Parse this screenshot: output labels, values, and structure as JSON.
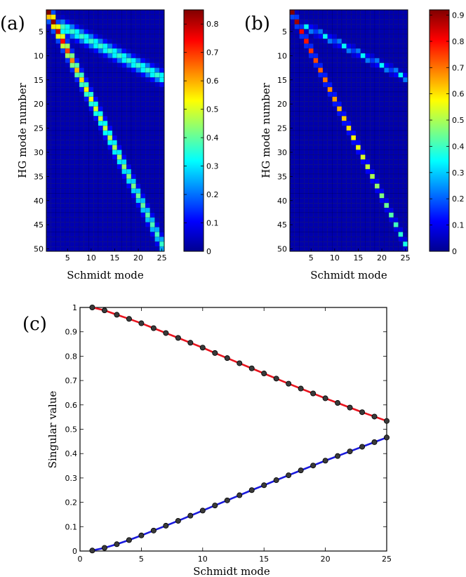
{
  "panels": [
    "(a)",
    "(b)",
    "(c)"
  ],
  "chart_data": [
    {
      "type": "heatmap",
      "panel": "(a)",
      "xlabel": "Schmidt mode",
      "ylabel": "HG mode number",
      "rows": 50,
      "cols": 25,
      "x_ticks": [
        5,
        10,
        15,
        20,
        25
      ],
      "y_ticks": [
        5,
        10,
        15,
        20,
        25,
        30,
        35,
        40,
        45,
        50
      ],
      "colorbar": {
        "min": 0,
        "max": 0.85,
        "ticks": [
          0,
          0.1,
          0.2,
          0.3,
          0.4,
          0.5,
          0.6,
          0.7,
          0.8
        ]
      },
      "colormap": "jet",
      "ridges": [
        {
          "description": "main diagonal ridge (HG ≈ 2k-1)",
          "values_along_k": [
            0.85,
            0.8,
            0.75,
            0.7,
            0.65,
            0.6,
            0.55,
            0.52,
            0.5,
            0.48,
            0.46,
            0.45,
            0.44,
            0.43,
            0.42,
            0.41,
            0.4,
            0.39,
            0.38,
            0.37,
            0.36,
            0.35,
            0.34,
            0.33,
            0.32
          ]
        },
        {
          "description": "secondary ridge (HG ≈ k/2 + 2)",
          "value": 0.32
        }
      ]
    },
    {
      "type": "heatmap",
      "panel": "(b)",
      "xlabel": "Schmidt mode",
      "ylabel": "HG mode number",
      "rows": 50,
      "cols": 25,
      "x_ticks": [
        5,
        10,
        15,
        20,
        25
      ],
      "y_ticks": [
        5,
        10,
        15,
        20,
        25,
        30,
        35,
        40,
        45,
        50
      ],
      "colorbar": {
        "min": 0,
        "max": 0.92,
        "ticks": [
          0,
          0.1,
          0.2,
          0.3,
          0.4,
          0.5,
          0.6,
          0.7,
          0.8,
          0.9
        ]
      },
      "colormap": "jet",
      "ridges": [
        {
          "description": "main diagonal ridge (HG ≈ 2k-1)",
          "values_along_k": [
            0.92,
            0.85,
            0.78,
            0.75,
            0.72,
            0.7,
            0.68,
            0.66,
            0.64,
            0.62,
            0.6,
            0.58,
            0.56,
            0.54,
            0.52,
            0.5,
            0.48,
            0.46,
            0.44,
            0.42,
            0.4,
            0.38,
            0.36,
            0.34,
            0.32
          ]
        },
        {
          "description": "secondary ridge (HG ≈ k/2 + 2)",
          "value": 0.3
        }
      ]
    },
    {
      "type": "line",
      "panel": "(c)",
      "xlabel": "Schmidt mode",
      "ylabel": "Singular value",
      "xlim": [
        0,
        25
      ],
      "ylim": [
        0,
        1
      ],
      "x_ticks": [
        0,
        5,
        10,
        15,
        20,
        25
      ],
      "y_ticks": [
        0,
        0.1,
        0.2,
        0.3,
        0.4,
        0.5,
        0.6,
        0.7,
        0.8,
        0.9,
        1
      ],
      "series": [
        {
          "color": "#e8141e",
          "x": [
            1,
            2,
            3,
            4,
            5,
            6,
            7,
            8,
            9,
            10,
            11,
            12,
            13,
            14,
            15,
            16,
            17,
            18,
            19,
            20,
            21,
            22,
            23,
            24,
            25
          ],
          "values": [
            1.0,
            0.988,
            0.97,
            0.953,
            0.935,
            0.915,
            0.895,
            0.875,
            0.855,
            0.835,
            0.813,
            0.792,
            0.771,
            0.75,
            0.729,
            0.708,
            0.687,
            0.667,
            0.647,
            0.627,
            0.608,
            0.589,
            0.57,
            0.552,
            0.534
          ]
        },
        {
          "color": "#1a1adc",
          "x": [
            1,
            2,
            3,
            4,
            5,
            6,
            7,
            8,
            9,
            10,
            11,
            12,
            13,
            14,
            15,
            16,
            17,
            18,
            19,
            20,
            21,
            22,
            23,
            24,
            25
          ],
          "values": [
            0.002,
            0.013,
            0.028,
            0.045,
            0.064,
            0.084,
            0.104,
            0.124,
            0.145,
            0.166,
            0.187,
            0.208,
            0.229,
            0.25,
            0.27,
            0.291,
            0.311,
            0.331,
            0.351,
            0.371,
            0.39,
            0.409,
            0.428,
            0.447,
            0.466
          ]
        }
      ],
      "marker": "circle",
      "marker_color": "#3a3a3a"
    }
  ]
}
